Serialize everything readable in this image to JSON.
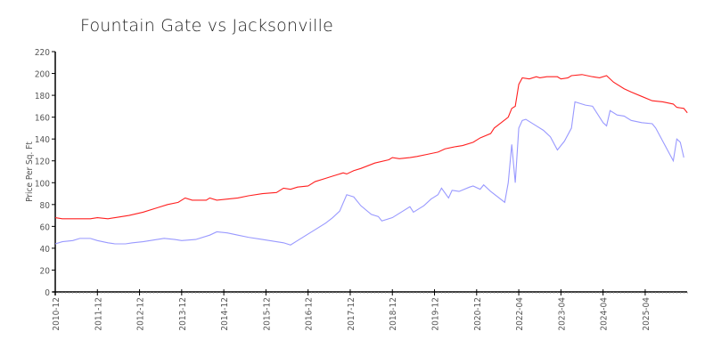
{
  "chart_data": {
    "type": "line",
    "title": "Fountain Gate vs Jacksonville",
    "xlabel": "",
    "ylabel": "Price Per Sq. Ft",
    "ylim": [
      0,
      220
    ],
    "yticks": [
      0,
      20,
      40,
      60,
      80,
      100,
      120,
      140,
      160,
      180,
      200,
      220
    ],
    "xlim": [
      0,
      180
    ],
    "xticks": [
      {
        "x": 0,
        "label": "2010-12"
      },
      {
        "x": 12,
        "label": "2011-12"
      },
      {
        "x": 24,
        "label": "2012-12"
      },
      {
        "x": 36,
        "label": "2013-12"
      },
      {
        "x": 48,
        "label": "2014-12"
      },
      {
        "x": 60,
        "label": "2015-12"
      },
      {
        "x": 72,
        "label": "2016-12"
      },
      {
        "x": 84,
        "label": "2017-12"
      },
      {
        "x": 96,
        "label": "2018-12"
      },
      {
        "x": 108,
        "label": "2019-12"
      },
      {
        "x": 120,
        "label": "2020-12"
      },
      {
        "x": 132,
        "label": "2022-04"
      },
      {
        "x": 144,
        "label": "2023-04"
      },
      {
        "x": 156,
        "label": "2024-04"
      },
      {
        "x": 168,
        "label": "2025-04"
      }
    ],
    "grid": false,
    "series": [
      {
        "name": "Fountain Gate",
        "color": "#ff2020",
        "x": [
          0,
          2,
          10,
          12,
          15,
          17,
          21,
          25,
          29,
          32,
          35,
          37,
          39,
          43,
          44,
          46,
          49,
          52,
          55,
          59,
          63,
          65,
          67,
          69,
          72,
          74,
          77,
          79,
          82,
          83,
          85,
          87,
          91,
          95,
          96,
          98,
          101,
          103,
          106,
          109,
          111,
          114,
          116,
          119,
          121,
          124,
          125,
          127,
          129,
          130,
          131,
          132,
          133,
          135,
          137,
          138,
          140,
          143,
          144,
          146,
          147,
          150,
          153,
          155,
          157,
          159,
          162,
          164,
          167,
          170,
          173,
          176,
          177,
          179,
          180
        ],
        "y": [
          68,
          67,
          67,
          68,
          67,
          68,
          70,
          73,
          77,
          80,
          82,
          86,
          84,
          84,
          86,
          84,
          85,
          86,
          88,
          90,
          91,
          95,
          94,
          96,
          97,
          101,
          104,
          106,
          109,
          108,
          111,
          113,
          118,
          121,
          123,
          122,
          123,
          124,
          126,
          128,
          131,
          133,
          134,
          137,
          141,
          145,
          150,
          155,
          160,
          168,
          170,
          190,
          196,
          195,
          197,
          196,
          197,
          197,
          195,
          196,
          198,
          199,
          197,
          196,
          198,
          192,
          186,
          183,
          179,
          175,
          174,
          172,
          169,
          168,
          164
        ]
      },
      {
        "name": "Jacksonville",
        "color": "#9999ff",
        "x": [
          0,
          2,
          5,
          7,
          10,
          12,
          15,
          17,
          20,
          22,
          25,
          27,
          31,
          34,
          36,
          40,
          44,
          46,
          49,
          52,
          55,
          59,
          63,
          65,
          67,
          69,
          72,
          74,
          77,
          79,
          81,
          83,
          85,
          87,
          90,
          92,
          93,
          96,
          99,
          101,
          102,
          105,
          107,
          109,
          110,
          112,
          113,
          115,
          118,
          119,
          121,
          122,
          124,
          128,
          129,
          130,
          131,
          132,
          133,
          134,
          137,
          139,
          141,
          143,
          145,
          147,
          148,
          151,
          153,
          156,
          157,
          158,
          160,
          162,
          164,
          167,
          170,
          171,
          174,
          176,
          177,
          178,
          179
        ],
        "y": [
          44,
          46,
          47,
          49,
          49,
          47,
          45,
          44,
          44,
          45,
          46,
          47,
          49,
          48,
          47,
          48,
          52,
          55,
          54,
          52,
          50,
          48,
          46,
          45,
          43,
          47,
          53,
          57,
          63,
          68,
          74,
          89,
          87,
          79,
          71,
          69,
          65,
          68,
          74,
          78,
          73,
          79,
          85,
          89,
          95,
          86,
          93,
          92,
          96,
          97,
          94,
          98,
          92,
          82,
          100,
          135,
          100,
          150,
          157,
          158,
          152,
          148,
          142,
          130,
          138,
          150,
          174,
          171,
          170,
          155,
          152,
          166,
          162,
          161,
          157,
          155,
          154,
          150,
          132,
          120,
          140,
          137,
          123
        ]
      }
    ]
  }
}
